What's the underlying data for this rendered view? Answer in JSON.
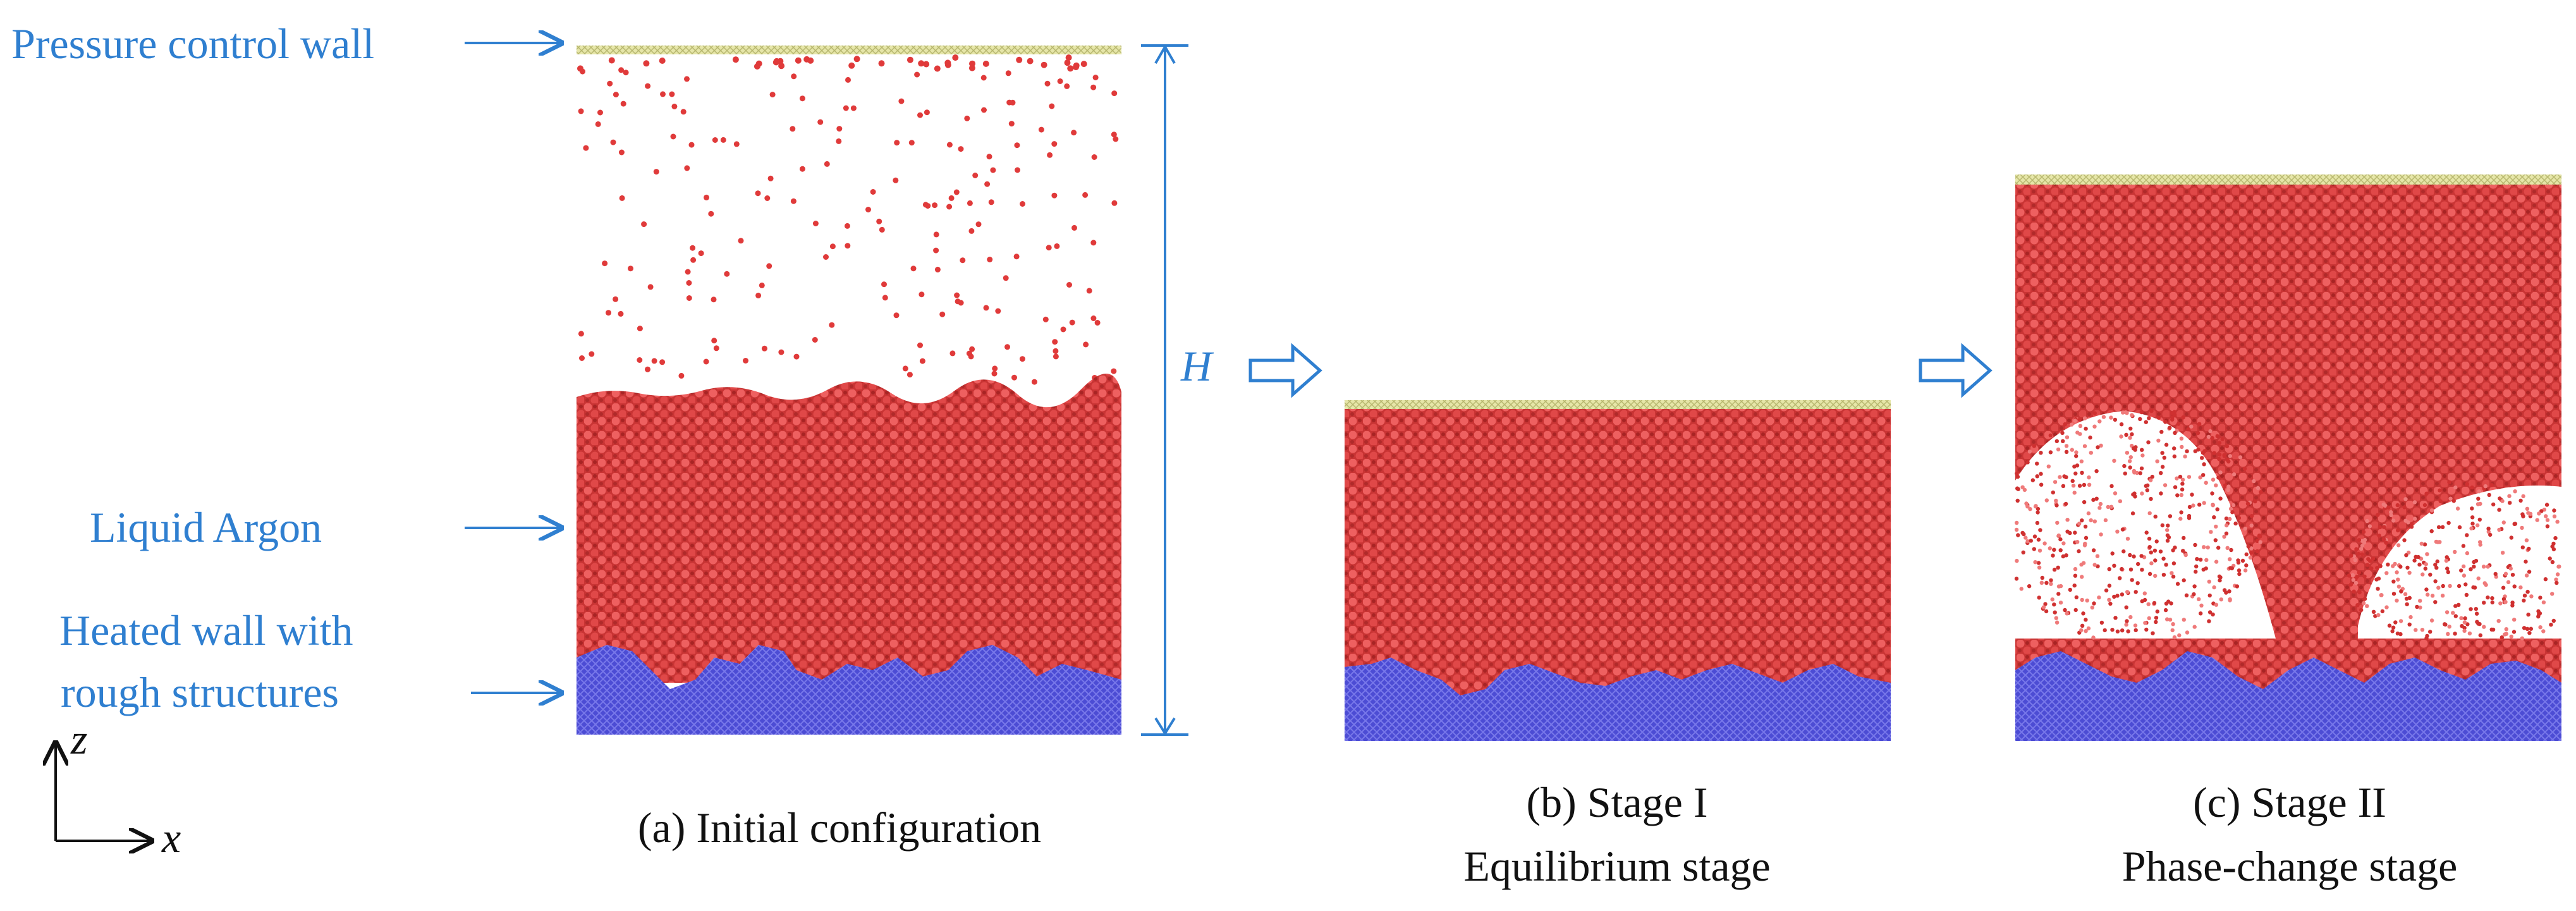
{
  "annotations": {
    "pressure_wall": "Pressure control wall",
    "liquid": "Liquid Argon",
    "heated_wall_line1": "Heated wall with",
    "heated_wall_line2": "rough structures",
    "height_symbol": "H",
    "axis_z": "z",
    "axis_x": "x"
  },
  "captions": {
    "a": "(a) Initial configuration",
    "b_line1": "(b) Stage I",
    "b_line2": "Equilibrium stage",
    "c_line1": "(c) Stage II",
    "c_line2": "Phase-change stage"
  },
  "colors": {
    "annotation": "#2f7fd0",
    "liquid_argon": "#d23c3c",
    "vapor_atom": "#e03a3a",
    "heated_wall": "#5555d8",
    "pressure_wall": "#dede9c",
    "caption_text": "#111111"
  }
}
